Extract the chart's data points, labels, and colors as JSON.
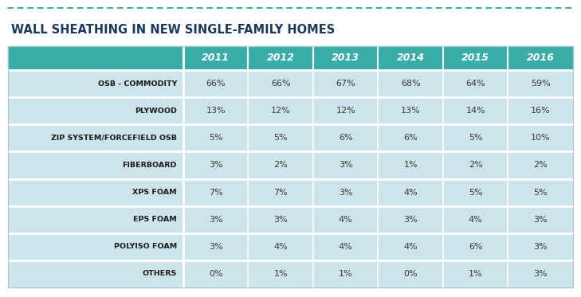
{
  "title": "WALL SHEATHING IN NEW SINGLE-FAMILY HOMES",
  "title_color": "#1a3a5c",
  "header_bg": "#3aada8",
  "header_text_color": "#ffffff",
  "row_bg": "#cde4ea",
  "cell_text_color": "#3a3a3a",
  "label_text_color": "#1a1a1a",
  "dotted_line_color": "#3aada8",
  "years": [
    "2011",
    "2012",
    "2013",
    "2014",
    "2015",
    "2016"
  ],
  "rows": [
    {
      "label": "OSB - COMMODITY",
      "values": [
        "66%",
        "66%",
        "67%",
        "68%",
        "64%",
        "59%"
      ]
    },
    {
      "label": "PLYWOOD",
      "values": [
        "13%",
        "12%",
        "12%",
        "13%",
        "14%",
        "16%"
      ]
    },
    {
      "label": "ZIP SYSTEM/FORCEFIELD OSB",
      "values": [
        "5%",
        "5%",
        "6%",
        "6%",
        "5%",
        "10%"
      ]
    },
    {
      "label": "FIBERBOARD",
      "values": [
        "3%",
        "2%",
        "3%",
        "1%",
        "2%",
        "2%"
      ]
    },
    {
      "label": "XPS FOAM",
      "values": [
        "7%",
        "7%",
        "3%",
        "4%",
        "5%",
        "5%"
      ]
    },
    {
      "label": "EPS FOAM",
      "values": [
        "3%",
        "3%",
        "4%",
        "3%",
        "4%",
        "3%"
      ]
    },
    {
      "label": "POLYISO FOAM",
      "values": [
        "3%",
        "4%",
        "4%",
        "4%",
        "6%",
        "3%"
      ]
    },
    {
      "label": "OTHERS",
      "values": [
        "0%",
        "1%",
        "1%",
        "0%",
        "1%",
        "3%"
      ]
    }
  ],
  "fig_width": 7.29,
  "fig_height": 3.73,
  "dpi": 100
}
